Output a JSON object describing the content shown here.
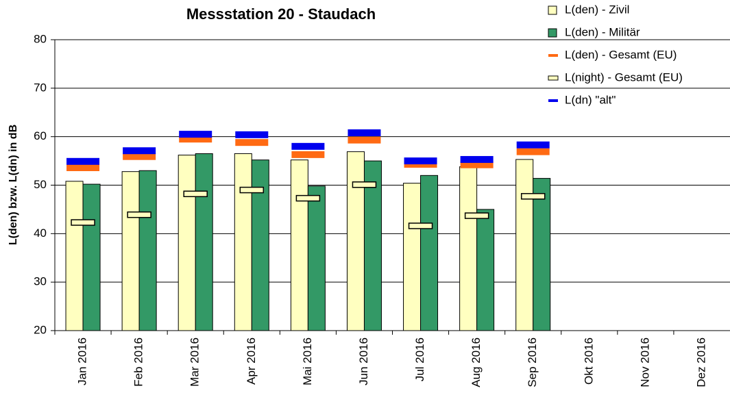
{
  "chart_data": {
    "type": "bar",
    "title": "Messstation 20 - Staudach",
    "y_label": "L(den) bzw. L(dn) in dB",
    "categories": [
      "Jan 2016",
      "Feb 2016",
      "Mar 2016",
      "Apr 2016",
      "Mai 2016",
      "Jun 2016",
      "Jul 2016",
      "Aug 2016",
      "Sep 2016",
      "Okt 2016",
      "Nov 2016",
      "Dez 2016"
    ],
    "series": [
      {
        "name": "L(den) - Zivil",
        "color": "#ffffc0",
        "kind": "bar",
        "values": [
          50.8,
          52.8,
          56.2,
          56.5,
          55.2,
          56.9,
          50.4,
          53.8,
          55.3,
          null,
          null,
          null
        ]
      },
      {
        "name": "L(den) - Militär",
        "color": "#339966",
        "kind": "bar",
        "values": [
          50.2,
          53.0,
          56.5,
          55.2,
          49.8,
          55.0,
          52.0,
          45.0,
          51.4,
          null,
          null,
          null
        ]
      },
      {
        "name": "L(den) - Gesamt (EU)",
        "color": "#ff6a13",
        "kind": "marker",
        "values": [
          53.6,
          55.9,
          59.5,
          58.8,
          56.3,
          59.3,
          54.3,
          54.2,
          56.9,
          null,
          null,
          null
        ]
      },
      {
        "name": "L(night) - Gesamt (EU)",
        "color": "#ffffc0",
        "kind": "box",
        "values": [
          42.3,
          43.9,
          48.2,
          49.0,
          47.3,
          50.1,
          41.6,
          43.7,
          47.7,
          null,
          null,
          null
        ]
      },
      {
        "name": "L(dn) \"alt\"",
        "color": "#0000ee",
        "kind": "marker",
        "values": [
          54.9,
          57.1,
          60.5,
          60.4,
          58.0,
          60.8,
          55.0,
          55.3,
          58.3,
          null,
          null,
          null
        ]
      }
    ],
    "ylim": [
      20,
      80
    ],
    "yticks": [
      20,
      30,
      40,
      50,
      60,
      70,
      80
    ],
    "grid": true
  }
}
